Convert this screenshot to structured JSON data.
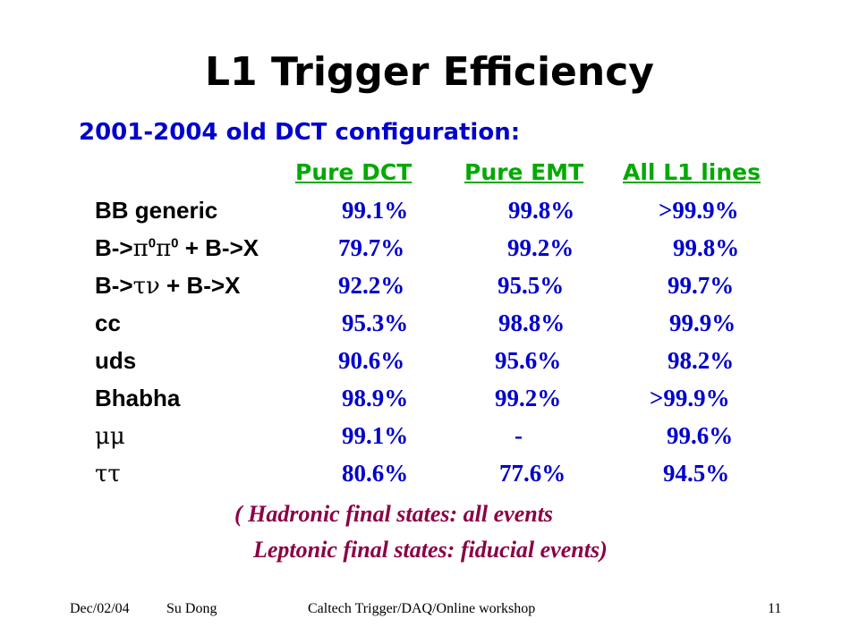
{
  "title": "L1 Trigger Efficiency",
  "subtitle": "2001-2004 old DCT configuration:",
  "columns": [
    "Pure DCT",
    "Pure EMT",
    "All L1 lines"
  ],
  "rows": [
    {
      "label": "BB generic",
      "values": [
        "99.1%",
        "99.8%",
        ">99.9%"
      ]
    },
    {
      "label_parts": [
        "B->",
        "π",
        "0",
        "π",
        "0",
        " + B->X"
      ],
      "values": [
        "79.7%",
        "99.2%",
        "99.8%"
      ]
    },
    {
      "label_parts": [
        "B->",
        "τν",
        " + B->X"
      ],
      "values": [
        "92.2%",
        "95.5%",
        "99.7%"
      ]
    },
    {
      "label": "cc",
      "values": [
        "95.3%",
        "98.8%",
        "99.9%"
      ]
    },
    {
      "label": "uds",
      "values": [
        "90.6%",
        "95.6%",
        "98.2%"
      ]
    },
    {
      "label": "Bhabha",
      "values": [
        "98.9%",
        "99.2%",
        ">99.9%"
      ]
    },
    {
      "label": "μμ",
      "values": [
        "99.1%",
        "-",
        "99.6%"
      ]
    },
    {
      "label": "ττ",
      "values": [
        "80.6%",
        "77.6%",
        "94.5%"
      ]
    }
  ],
  "notes": [
    "( Hadronic final states: all events",
    "Leptonic final states:  fiducial events)"
  ],
  "footer": {
    "date": "Dec/02/04",
    "author": "Su Dong",
    "event": "Caltech Trigger/DAQ/Online workshop",
    "page": "11"
  }
}
